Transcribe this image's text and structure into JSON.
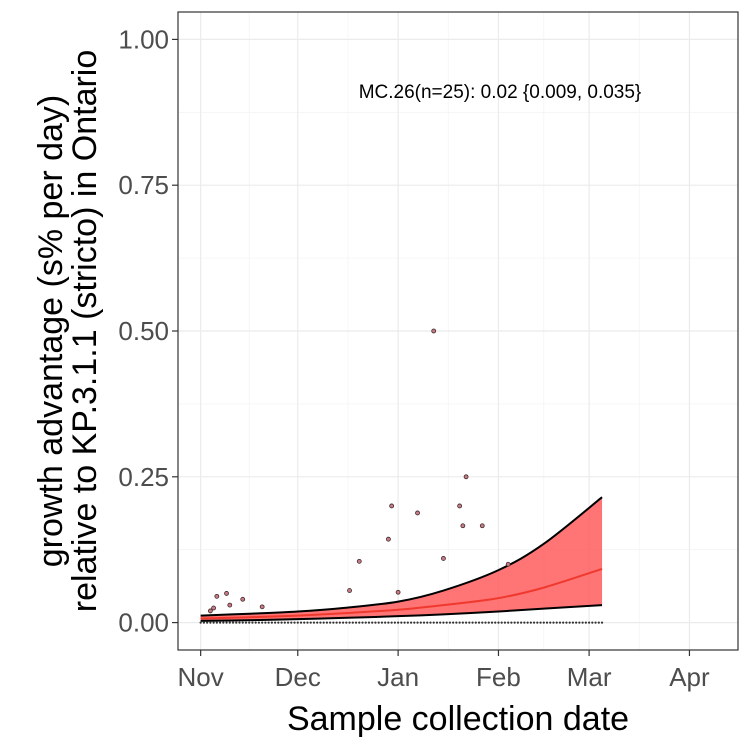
{
  "chart_data": {
    "type": "line",
    "xlabel": "Sample collection date",
    "ylabel_lines": [
      "growth advantage (s% per day)",
      "relative to KP.3.1.1 (stricto) in Ontario"
    ],
    "x_ticks": [
      {
        "label": "Nov",
        "date": "2024-11-01"
      },
      {
        "label": "Dec",
        "date": "2024-12-01"
      },
      {
        "label": "Jan",
        "date": "2025-01-01"
      },
      {
        "label": "Feb",
        "date": "2025-02-01"
      },
      {
        "label": "Mar",
        "date": "2025-03-01"
      },
      {
        "label": "Apr",
        "date": "2025-04-01"
      }
    ],
    "xlim": [
      "2024-10-25",
      "2025-04-16"
    ],
    "y_ticks": [
      "0.00",
      "0.25",
      "0.50",
      "0.75",
      "1.00"
    ],
    "ylim": [
      -0.047,
      1.047
    ],
    "grid": true,
    "annotation": "MC.26(n=25): 0.02 {0.009, 0.035}",
    "fit": {
      "dates": [
        "2024-11-01",
        "2024-11-15",
        "2024-12-01",
        "2024-12-15",
        "2025-01-01",
        "2025-01-15",
        "2025-02-01",
        "2025-02-15",
        "2025-03-05"
      ],
      "mean": [
        0.007,
        0.009,
        0.012,
        0.016,
        0.022,
        0.03,
        0.042,
        0.06,
        0.092
      ],
      "lower": [
        0.003,
        0.004,
        0.006,
        0.008,
        0.011,
        0.014,
        0.019,
        0.024,
        0.03
      ],
      "upper": [
        0.012,
        0.015,
        0.019,
        0.025,
        0.036,
        0.055,
        0.09,
        0.135,
        0.215
      ]
    },
    "observed_points": [
      {
        "date": "2024-11-04",
        "y": 0.02
      },
      {
        "date": "2024-11-05",
        "y": 0.025
      },
      {
        "date": "2024-11-06",
        "y": 0.045
      },
      {
        "date": "2024-11-09",
        "y": 0.05
      },
      {
        "date": "2024-11-10",
        "y": 0.03
      },
      {
        "date": "2024-11-14",
        "y": 0.04
      },
      {
        "date": "2024-11-20",
        "y": 0.027
      },
      {
        "date": "2024-12-17",
        "y": 0.055
      },
      {
        "date": "2024-12-20",
        "y": 0.105
      },
      {
        "date": "2024-12-29",
        "y": 0.143
      },
      {
        "date": "2024-12-30",
        "y": 0.2
      },
      {
        "date": "2025-01-01",
        "y": 0.052
      },
      {
        "date": "2025-01-07",
        "y": 0.188
      },
      {
        "date": "2025-01-12",
        "y": 0.5
      },
      {
        "date": "2025-01-15",
        "y": 0.11
      },
      {
        "date": "2025-01-20",
        "y": 0.2
      },
      {
        "date": "2025-01-21",
        "y": 0.166
      },
      {
        "date": "2025-01-22",
        "y": 0.25
      },
      {
        "date": "2025-01-27",
        "y": 0.166
      },
      {
        "date": "2025-02-04",
        "y": 0.1
      }
    ],
    "zero_rug": {
      "start": "2024-11-01",
      "end": "2025-03-05",
      "y": 0
    }
  }
}
